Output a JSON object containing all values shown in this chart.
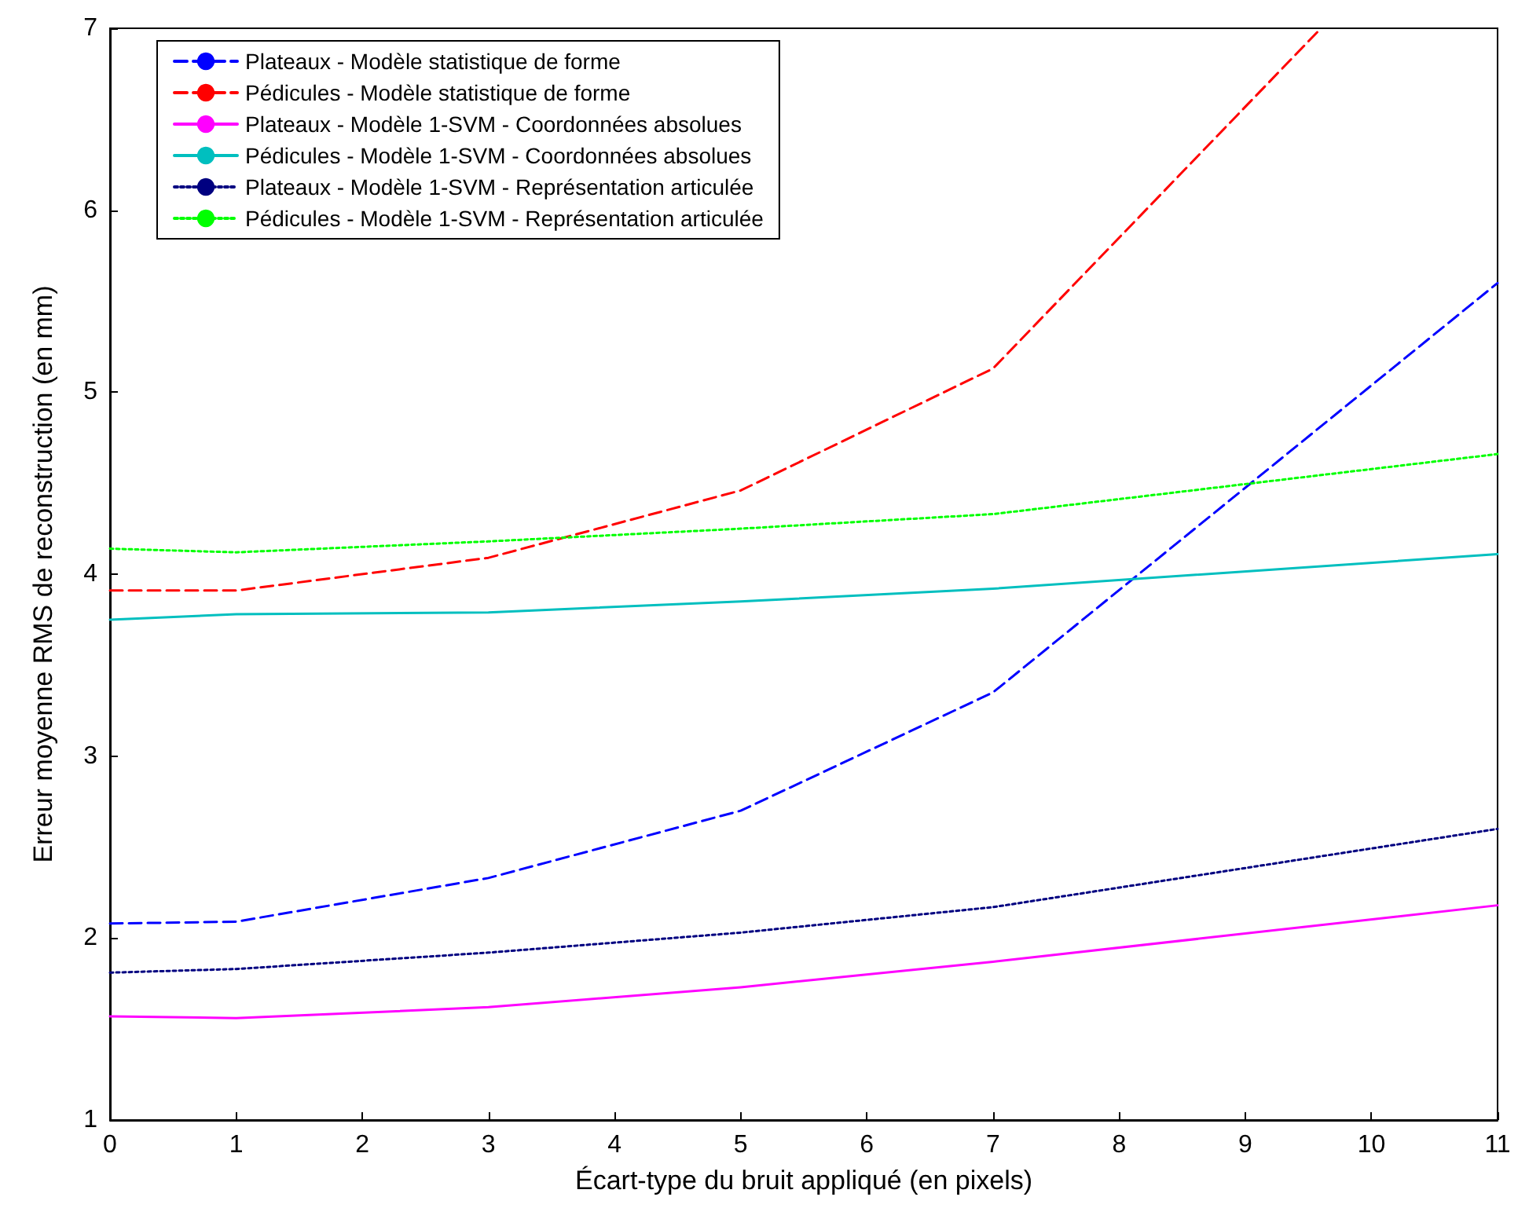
{
  "chart_data": {
    "type": "line",
    "xlabel": "Écart-type du bruit appliqué (en pixels)",
    "ylabel": "Erreur moyenne RMS de reconstruction (en mm)",
    "x": [
      0,
      1,
      3,
      5,
      7,
      11
    ],
    "series": [
      {
        "name": "Plateaux - Modèle statistique de forme",
        "color": "#0000ff",
        "line_style": "dashed",
        "values": [
          2.08,
          2.09,
          2.33,
          2.7,
          3.35,
          5.6
        ]
      },
      {
        "name": "Pédicules - Modèle statistique de forme",
        "color": "#ff0000",
        "line_style": "dashed",
        "x": [
          0,
          1,
          3,
          5,
          7,
          9.6
        ],
        "values": [
          3.91,
          3.91,
          4.09,
          4.46,
          5.13,
          7.0
        ]
      },
      {
        "name": "Plateaux - Modèle 1-SVM - Coordonnées absolues",
        "color": "#ff00ff",
        "line_style": "solid",
        "values": [
          1.57,
          1.56,
          1.62,
          1.73,
          1.87,
          2.18
        ]
      },
      {
        "name": "Pédicules - Modèle 1-SVM - Coordonnées absolues",
        "color": "#00bfbf",
        "line_style": "solid",
        "values": [
          3.75,
          3.78,
          3.79,
          3.85,
          3.92,
          4.11
        ]
      },
      {
        "name": "Plateaux - Modèle 1-SVM - Représentation articulée",
        "color": "#000080",
        "line_style": "dotted",
        "values": [
          1.81,
          1.83,
          1.92,
          2.03,
          2.17,
          2.6
        ]
      },
      {
        "name": "Pédicules - Modèle 1-SVM - Représentation articulée",
        "color": "#00ff00",
        "line_style": "dotted",
        "values": [
          4.14,
          4.12,
          4.18,
          4.25,
          4.33,
          4.66
        ]
      }
    ],
    "xlim": [
      0,
      11
    ],
    "xticks": [
      0,
      1,
      2,
      3,
      4,
      5,
      6,
      7,
      8,
      9,
      10,
      11
    ],
    "ylim": [
      1,
      7
    ],
    "yticks": [
      1,
      2,
      3,
      4,
      5,
      6,
      7
    ],
    "grid": false,
    "legend": "top left",
    "marker": "none"
  }
}
